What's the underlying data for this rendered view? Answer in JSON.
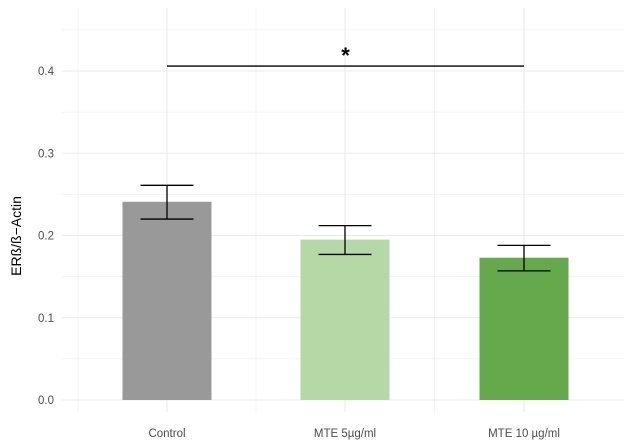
{
  "chart_data": {
    "type": "bar",
    "title": "",
    "xlabel": "",
    "ylabel": "ERß/ß−Actin",
    "categories": [
      "Control",
      "MTE 5µg/ml",
      "MTE 10 µg/ml"
    ],
    "values": [
      0.241,
      0.195,
      0.173
    ],
    "error_low": [
      0.22,
      0.177,
      0.157
    ],
    "error_high": [
      0.261,
      0.212,
      0.188
    ],
    "colors": [
      "#999999",
      "#b5d8a7",
      "#66a84c"
    ],
    "ylim": [
      0,
      0.45
    ],
    "yticks": [
      0.0,
      0.1,
      0.2,
      0.3,
      0.4
    ],
    "ytick_labels": [
      "0.0",
      "0.1",
      "0.2",
      "0.3",
      "0.4"
    ],
    "grid": true,
    "significance": {
      "from": "Control",
      "to": "MTE 10 µg/ml",
      "y": 0.406,
      "label": "*"
    }
  }
}
